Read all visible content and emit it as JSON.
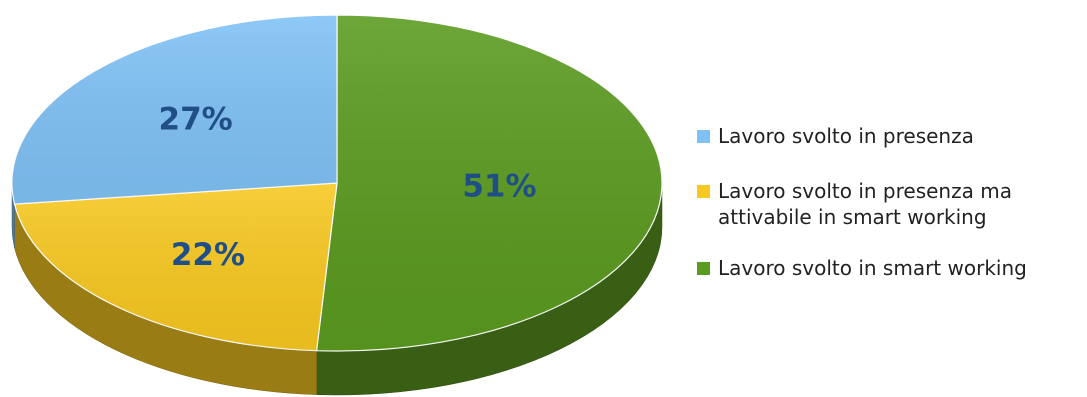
{
  "chart_data": {
    "type": "pie",
    "style": "3d",
    "series": [
      {
        "name": "",
        "slices": [
          {
            "label": "Lavoro svolto in smart working",
            "value": 51,
            "value_label": "51%",
            "color": "#5a9a1f"
          },
          {
            "label": "Lavoro svolto in presenza ma attivabile in smart working",
            "value": 22,
            "value_label": "22%",
            "color": "#f7c820"
          },
          {
            "label": "Lavoro svolto in presenza",
            "value": 27,
            "value_label": "27%",
            "color": "#7fc1f5"
          }
        ]
      }
    ],
    "legend": {
      "placement": "right",
      "entries": [
        {
          "lines": [
            "Lavoro svolto in presenza"
          ],
          "color": "#7fc1f5"
        },
        {
          "lines": [
            "Lavoro svolto in presenza ma",
            "attivabile in smart working"
          ],
          "color": "#f7c820"
        },
        {
          "lines": [
            "Lavoro svolto in smart working"
          ],
          "color": "#5a9a1f"
        }
      ]
    },
    "label_color": "#1f4f86"
  }
}
